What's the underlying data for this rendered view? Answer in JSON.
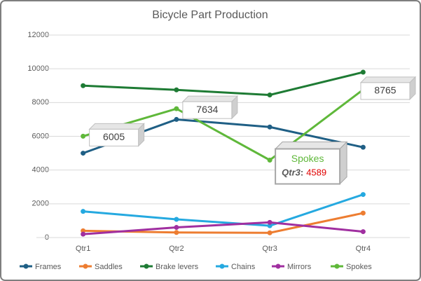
{
  "chart_data": {
    "type": "line",
    "title": "Bicycle Part Production",
    "categories": [
      "Qtr1",
      "Qtr2",
      "Qtr3",
      "Qtr4"
    ],
    "series": [
      {
        "name": "Frames",
        "color": "#1f5f85",
        "values": [
          5000,
          7000,
          6550,
          5350
        ]
      },
      {
        "name": "Saddles",
        "color": "#ed7d31",
        "values": [
          400,
          300,
          280,
          1450
        ]
      },
      {
        "name": "Brake levers",
        "color": "#1e7b34",
        "values": [
          9000,
          8750,
          8450,
          9800
        ]
      },
      {
        "name": "Chains",
        "color": "#25a9e0",
        "values": [
          1550,
          1080,
          700,
          2550
        ]
      },
      {
        "name": "Mirrors",
        "color": "#a02fa0",
        "values": [
          200,
          600,
          900,
          350
        ]
      },
      {
        "name": "Spokes",
        "color": "#5fb83a",
        "values": [
          6005,
          7634,
          4589,
          8765
        ],
        "data_labels": true
      }
    ],
    "ylim": [
      0,
      12000
    ],
    "yticks": [
      0,
      2000,
      4000,
      6000,
      8000,
      10000,
      12000
    ],
    "grid": true,
    "legend": "bottom",
    "tooltip": {
      "series": "Spokes",
      "category": "Qtr3"
    }
  }
}
